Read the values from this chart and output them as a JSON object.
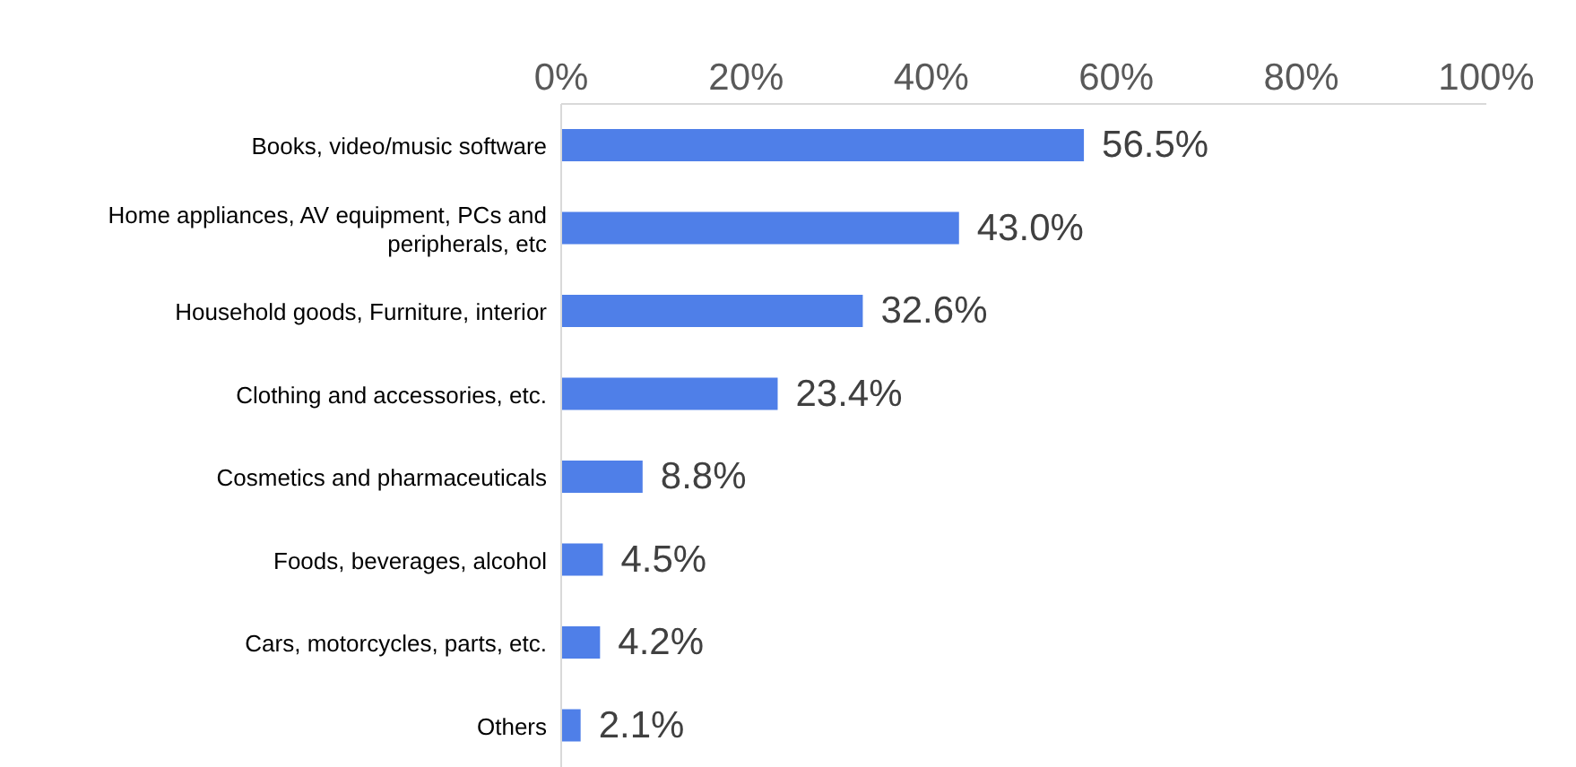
{
  "chart_data": {
    "type": "bar",
    "orientation": "horizontal",
    "categories": [
      "Books, video/music software",
      "Home appliances, AV equipment, PCs and peripherals, etc",
      "Household goods, Furniture, interior",
      "Clothing and accessories, etc.",
      "Cosmetics and pharmaceuticals",
      "Foods, beverages, alcohol",
      "Cars, motorcycles, parts, etc.",
      "Others"
    ],
    "values": [
      56.5,
      43.0,
      32.6,
      23.4,
      8.8,
      4.5,
      4.2,
      2.1
    ],
    "value_labels": [
      "56.5%",
      "43.0%",
      "32.6%",
      "23.4%",
      "8.8%",
      "4.5%",
      "4.2%",
      "2.1%"
    ],
    "color": "#4f7fe8",
    "xlim": [
      0,
      100
    ],
    "xticks": [
      {
        "value": 0,
        "label": "0%"
      },
      {
        "value": 20,
        "label": "20%"
      },
      {
        "value": 40,
        "label": "40%"
      },
      {
        "value": 60,
        "label": "60%"
      },
      {
        "value": 80,
        "label": "80%"
      },
      {
        "value": 100,
        "label": "100%"
      }
    ],
    "grid": false,
    "legend": false
  }
}
